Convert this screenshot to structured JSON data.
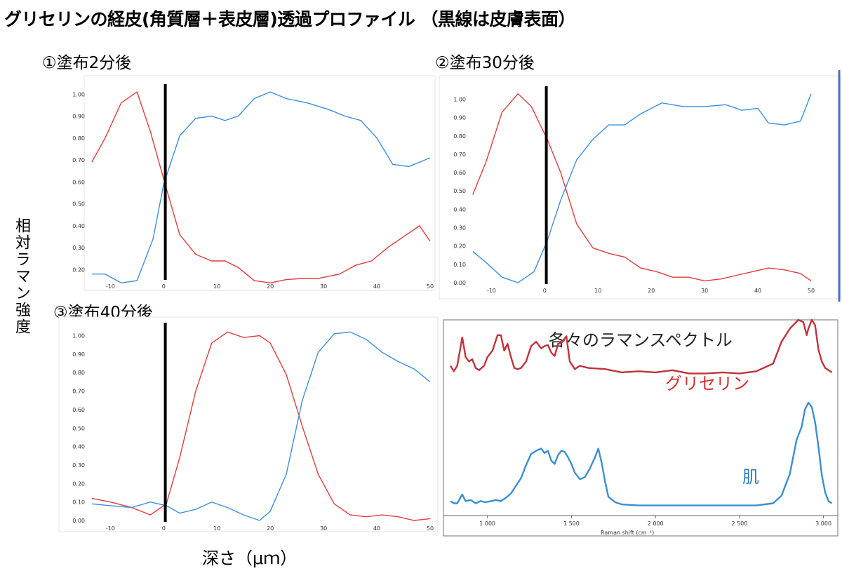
{
  "figure": {
    "title": "グリセリンの経皮(角質層＋表皮層)透過プロファイル （黒線は皮膚表面）",
    "ylabel": "相対ラマン強度",
    "xlabel": "深さ（μｍ）"
  },
  "chart_data": [
    {
      "type": "line",
      "title": "①塗布2分後",
      "x_ticks": [
        -10,
        0,
        10,
        20,
        30,
        40,
        50
      ],
      "y_ticks": [
        0.2,
        0.3,
        0.4,
        0.5,
        0.6,
        0.7,
        0.8,
        0.9,
        1.0
      ],
      "y_tick_labels": [
        "0.20",
        "0.30",
        "0.40",
        "0.50",
        "0.60",
        "0.70",
        "0.80",
        "0.90",
        "1.00"
      ],
      "xlim": [
        -14,
        50
      ],
      "ylim": [
        0.16,
        1.02
      ],
      "marker_x": 0.3,
      "series": [
        {
          "color": "#e03c3c",
          "x": [
            -13.5,
            -11,
            -8,
            -5,
            -2.5,
            0.5,
            3,
            6,
            9,
            11.5,
            14,
            17,
            20,
            23,
            26,
            29,
            33,
            36,
            39,
            42,
            45,
            48,
            50
          ],
          "y": [
            0.69,
            0.8,
            0.96,
            1.01,
            0.83,
            0.57,
            0.36,
            0.27,
            0.24,
            0.24,
            0.21,
            0.15,
            0.14,
            0.155,
            0.16,
            0.16,
            0.18,
            0.22,
            0.24,
            0.3,
            0.35,
            0.4,
            0.33
          ]
        },
        {
          "color": "#3c8ee0",
          "x": [
            -13.5,
            -11,
            -8,
            -5,
            -2,
            0,
            3,
            6,
            9,
            11.5,
            14,
            17,
            20,
            23,
            27,
            31,
            34,
            37,
            40,
            43,
            46,
            50
          ],
          "y": [
            0.18,
            0.18,
            0.14,
            0.15,
            0.34,
            0.59,
            0.81,
            0.89,
            0.9,
            0.88,
            0.9,
            0.98,
            1.01,
            0.98,
            0.96,
            0.93,
            0.9,
            0.88,
            0.8,
            0.68,
            0.67,
            0.71
          ]
        }
      ]
    },
    {
      "type": "line",
      "title": "②塗布30分後",
      "x_ticks": [
        -10,
        0,
        10,
        20,
        30,
        40,
        50
      ],
      "y_ticks": [
        0.0,
        0.1,
        0.2,
        0.3,
        0.4,
        0.5,
        0.6,
        0.7,
        0.8,
        0.9,
        1.0
      ],
      "y_tick_labels": [
        "0.00",
        "0.10",
        "0.20",
        "0.30",
        "0.40",
        "0.50",
        "0.60",
        "0.70",
        "0.80",
        "0.90",
        "1.00"
      ],
      "xlim": [
        -14,
        50
      ],
      "ylim": [
        0.0,
        1.04
      ],
      "marker_x": 0.3,
      "series": [
        {
          "color": "#e03c3c",
          "x": [
            -13.5,
            -11,
            -8,
            -5,
            -2.5,
            0.5,
            3,
            6,
            9,
            12,
            15,
            18,
            21,
            24,
            27,
            30,
            33,
            36,
            39,
            42,
            45,
            48,
            50
          ],
          "y": [
            0.48,
            0.66,
            0.93,
            1.03,
            0.96,
            0.78,
            0.6,
            0.32,
            0.19,
            0.16,
            0.14,
            0.08,
            0.06,
            0.03,
            0.03,
            0.01,
            0.02,
            0.04,
            0.06,
            0.08,
            0.07,
            0.05,
            0.01
          ]
        },
        {
          "color": "#3c8ee0",
          "x": [
            -13.5,
            -11,
            -8,
            -5,
            -2,
            0.5,
            3,
            6,
            9,
            12,
            15,
            18,
            22,
            26,
            30,
            34,
            37,
            40,
            42,
            45,
            48,
            50
          ],
          "y": [
            0.17,
            0.11,
            0.03,
            0.0,
            0.06,
            0.23,
            0.45,
            0.67,
            0.78,
            0.86,
            0.86,
            0.92,
            0.98,
            0.96,
            0.96,
            0.97,
            0.94,
            0.95,
            0.87,
            0.86,
            0.88,
            1.03
          ]
        }
      ]
    },
    {
      "type": "line",
      "title": "③塗布40分後",
      "x_ticks": [
        -10,
        0,
        10,
        20,
        30,
        40,
        50
      ],
      "y_ticks": [
        0.0,
        0.1,
        0.2,
        0.3,
        0.4,
        0.5,
        0.6,
        0.7,
        0.8,
        0.9,
        1.0
      ],
      "y_tick_labels": [
        "0.00",
        "0.10",
        "0.20",
        "0.30",
        "0.40",
        "0.50",
        "0.60",
        "0.70",
        "0.80",
        "0.90",
        "1.00"
      ],
      "xlim": [
        -14,
        50
      ],
      "ylim": [
        0.0,
        1.04
      ],
      "marker_x": 0.3,
      "series": [
        {
          "color": "#e03c3c",
          "x": [
            -13.5,
            -10,
            -6,
            -2.5,
            0.5,
            3,
            6,
            9,
            12,
            15,
            18,
            20,
            23,
            26,
            29,
            32,
            35,
            38,
            41,
            44,
            47,
            50
          ],
          "y": [
            0.12,
            0.1,
            0.07,
            0.03,
            0.09,
            0.34,
            0.7,
            0.96,
            1.02,
            0.99,
            1.0,
            0.96,
            0.79,
            0.51,
            0.25,
            0.09,
            0.03,
            0.02,
            0.03,
            0.02,
            0.0,
            0.01
          ]
        },
        {
          "color": "#3c8ee0",
          "x": [
            -13.5,
            -10,
            -6,
            -2.5,
            0.5,
            3,
            6,
            9,
            12,
            15,
            18,
            20,
            23,
            26,
            29,
            32,
            35,
            38,
            41,
            44,
            47,
            50
          ],
          "y": [
            0.09,
            0.08,
            0.07,
            0.1,
            0.08,
            0.04,
            0.06,
            0.1,
            0.07,
            0.03,
            0.0,
            0.05,
            0.25,
            0.65,
            0.91,
            1.01,
            1.02,
            0.98,
            0.91,
            0.86,
            0.82,
            0.75
          ]
        }
      ]
    },
    {
      "type": "line",
      "title": "各々のラマンスペクトル",
      "xlabel": "Raman shift (cm⁻¹)",
      "x_ticks": [
        1000,
        1500,
        2000,
        2500,
        3000
      ],
      "x_tick_labels": [
        "1 000",
        "1 500",
        "2 000",
        "2 500",
        "3 000"
      ],
      "xlim": [
        780,
        3060
      ],
      "ylim": [
        0,
        1
      ],
      "series": [
        {
          "name": "グリセリン",
          "color": "#c0333a",
          "x": [
            780,
            800,
            820,
            850,
            870,
            890,
            910,
            930,
            950,
            980,
            1000,
            1030,
            1060,
            1080,
            1100,
            1120,
            1140,
            1160,
            1180,
            1200,
            1230,
            1260,
            1290,
            1320,
            1340,
            1360,
            1380,
            1400,
            1420,
            1440,
            1470,
            1490,
            1520,
            1550,
            1600,
            1700,
            1800,
            1900,
            2000,
            2100,
            2200,
            2300,
            2400,
            2500,
            2600,
            2700,
            2750,
            2800,
            2850,
            2880,
            2900,
            2910,
            2930,
            2950,
            2970,
            2990,
            3010,
            3030,
            3050
          ],
          "y": [
            0.58,
            0.53,
            0.58,
            0.84,
            0.66,
            0.62,
            0.64,
            0.56,
            0.54,
            0.58,
            0.66,
            0.72,
            0.86,
            0.86,
            0.72,
            0.78,
            0.66,
            0.56,
            0.55,
            0.56,
            0.62,
            0.76,
            0.8,
            0.74,
            0.76,
            0.77,
            0.7,
            0.67,
            0.78,
            0.79,
            0.85,
            0.62,
            0.55,
            0.58,
            0.56,
            0.55,
            0.52,
            0.53,
            0.52,
            0.54,
            0.51,
            0.51,
            0.52,
            0.51,
            0.53,
            0.6,
            0.8,
            0.92,
            1.0,
            0.98,
            0.86,
            0.92,
            1.0,
            0.95,
            0.73,
            0.62,
            0.56,
            0.54,
            0.52
          ]
        },
        {
          "name": "肌",
          "color": "#3a8fd0",
          "x": [
            780,
            800,
            820,
            850,
            870,
            900,
            930,
            960,
            990,
            1020,
            1050,
            1080,
            1110,
            1140,
            1170,
            1200,
            1230,
            1260,
            1290,
            1320,
            1340,
            1360,
            1380,
            1400,
            1420,
            1440,
            1460,
            1480,
            1500,
            1520,
            1550,
            1580,
            1610,
            1640,
            1660,
            1680,
            1700,
            1720,
            1760,
            1800,
            1900,
            2000,
            2100,
            2200,
            2300,
            2400,
            2500,
            2600,
            2700,
            2750,
            2800,
            2840,
            2870,
            2890,
            2910,
            2930,
            2950,
            2970,
            2990,
            3010,
            3030,
            3050
          ],
          "y": [
            0.1,
            0.08,
            0.08,
            0.16,
            0.1,
            0.11,
            0.08,
            0.1,
            0.09,
            0.1,
            0.11,
            0.1,
            0.13,
            0.17,
            0.24,
            0.31,
            0.43,
            0.53,
            0.56,
            0.58,
            0.54,
            0.56,
            0.47,
            0.44,
            0.52,
            0.56,
            0.55,
            0.5,
            0.44,
            0.36,
            0.3,
            0.32,
            0.4,
            0.5,
            0.58,
            0.45,
            0.28,
            0.14,
            0.09,
            0.07,
            0.06,
            0.06,
            0.06,
            0.06,
            0.06,
            0.06,
            0.06,
            0.06,
            0.08,
            0.15,
            0.35,
            0.66,
            0.78,
            0.94,
            1.0,
            0.96,
            0.82,
            0.6,
            0.34,
            0.18,
            0.1,
            0.08
          ]
        }
      ]
    }
  ]
}
